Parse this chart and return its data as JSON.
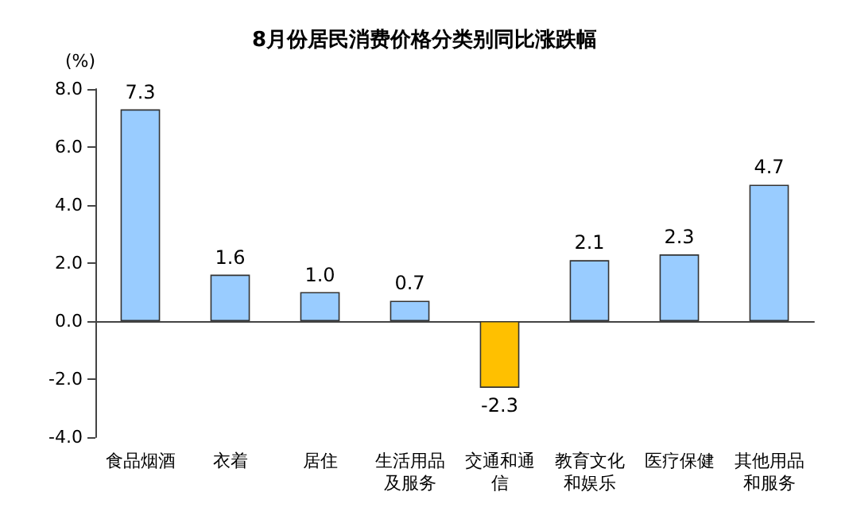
{
  "chart_data": {
    "type": "bar",
    "title": "8月份居民消费价格分类别同比涨跌幅",
    "ylabel": "(%)",
    "categories": [
      "食品烟酒",
      "衣着",
      "居住",
      "生活用品及服务",
      "交通和通信",
      "教育文化和娱乐",
      "医疗保健",
      "其他用品和服务"
    ],
    "values": [
      7.3,
      1.6,
      1.0,
      0.7,
      -2.3,
      2.1,
      2.3,
      4.7
    ],
    "value_labels": [
      "7.3",
      "1.6",
      "1.0",
      "0.7",
      "-2.3",
      "2.1",
      "2.3",
      "4.7"
    ],
    "colors": [
      "#99ccff",
      "#99ccff",
      "#99ccff",
      "#99ccff",
      "#ffc000",
      "#99ccff",
      "#99ccff",
      "#99ccff"
    ],
    "ylim": [
      -4,
      8
    ],
    "yticks": [
      {
        "value": -4,
        "label": "-4.0"
      },
      {
        "value": -2,
        "label": "-2.0"
      },
      {
        "value": 0,
        "label": "0.0"
      },
      {
        "value": 2,
        "label": "2.0"
      },
      {
        "value": 4,
        "label": "4.0"
      },
      {
        "value": 6,
        "label": "6.0"
      },
      {
        "value": 8,
        "label": "8.0"
      }
    ],
    "tick_labels": "xy"
  }
}
